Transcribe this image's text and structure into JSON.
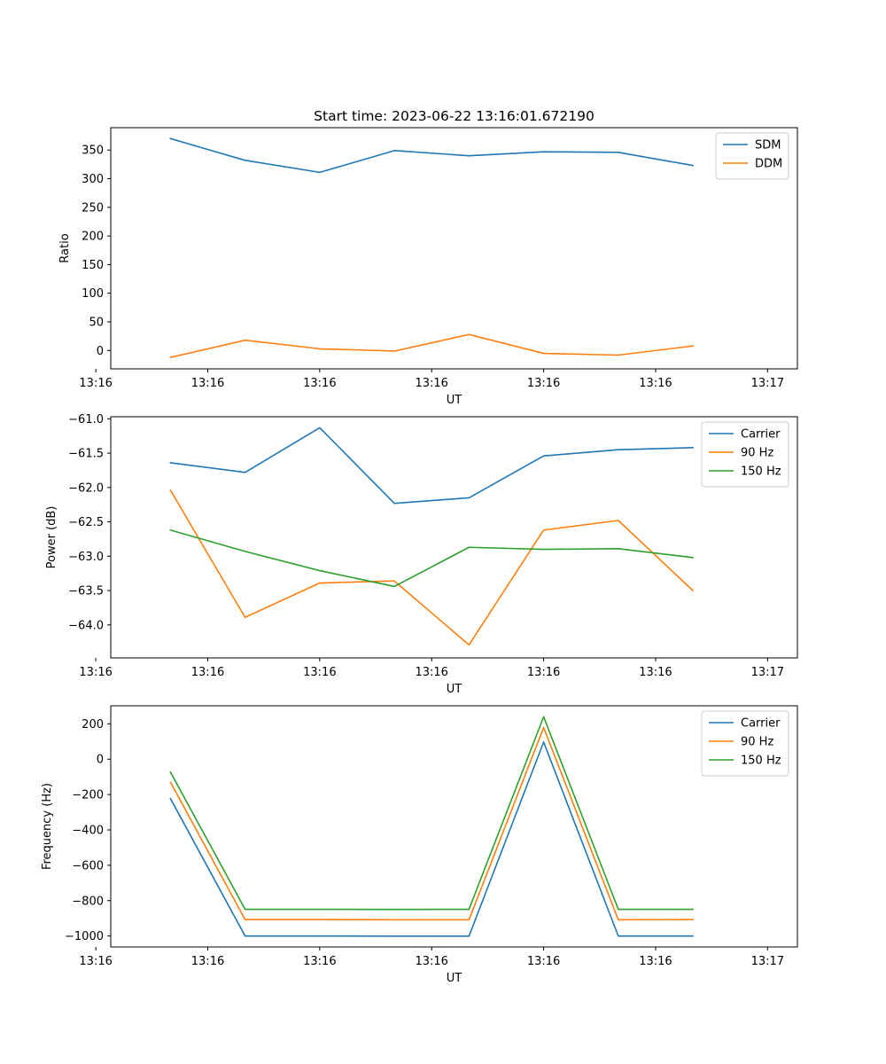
{
  "chart_data": [
    {
      "type": "line",
      "title": "Start time: 2023-06-22 13:16:01.672190",
      "xlabel": "UT",
      "ylabel": "Ratio",
      "x": [
        1,
        2,
        3,
        4,
        5,
        6,
        7,
        8
      ],
      "xlim": [
        0.2,
        9.4
      ],
      "x_ticks": [
        0,
        1.5,
        3,
        4.5,
        6,
        7.5,
        9
      ],
      "x_tick_labels": [
        "13:16",
        "13:16",
        "13:16",
        "13:16",
        "13:16",
        "13:16",
        "13:17"
      ],
      "ylim": [
        -32,
        389
      ],
      "y_ticks": [
        0,
        50,
        100,
        150,
        200,
        250,
        300,
        350
      ],
      "y_tick_labels": [
        "0",
        "50",
        "100",
        "150",
        "200",
        "250",
        "300",
        "350"
      ],
      "legend": "top-right",
      "grid": false,
      "series": [
        {
          "name": "SDM",
          "color": "#1f77b4",
          "values": [
            370,
            332,
            311,
            349,
            340,
            347,
            346,
            323
          ]
        },
        {
          "name": "DDM",
          "color": "#ff7f0e",
          "values": [
            -12,
            18,
            3,
            -1,
            28,
            -5,
            -8,
            8
          ]
        }
      ]
    },
    {
      "type": "line",
      "xlabel": "UT",
      "ylabel": "Power (dB)",
      "x": [
        1,
        2,
        3,
        4,
        5,
        6,
        7,
        8
      ],
      "xlim": [
        0.2,
        9.4
      ],
      "x_ticks": [
        0,
        1.5,
        3,
        4.5,
        6,
        7.5,
        9
      ],
      "x_tick_labels": [
        "13:16",
        "13:16",
        "13:16",
        "13:16",
        "13:16",
        "13:16",
        "13:17"
      ],
      "ylim": [
        -64.48,
        -60.97
      ],
      "y_ticks": [
        -64.0,
        -63.5,
        -63.0,
        -62.5,
        -62.0,
        -61.5,
        -61.0
      ],
      "y_tick_labels": [
        "−64.0",
        "−63.5",
        "−63.0",
        "−62.5",
        "−62.0",
        "−61.5",
        "−61.0"
      ],
      "legend": "top-right",
      "grid": false,
      "series": [
        {
          "name": "Carrier",
          "color": "#1f77b4",
          "values": [
            -61.64,
            -61.78,
            -61.13,
            -62.23,
            -62.15,
            -61.54,
            -61.45,
            -61.42
          ]
        },
        {
          "name": "90 Hz",
          "color": "#ff7f0e",
          "values": [
            -62.04,
            -63.89,
            -63.39,
            -63.36,
            -64.29,
            -62.62,
            -62.48,
            -63.5
          ]
        },
        {
          "name": "150 Hz",
          "color": "#2ca02c",
          "values": [
            -62.62,
            -62.93,
            -63.21,
            -63.44,
            -62.87,
            -62.9,
            -62.89,
            -63.02
          ]
        }
      ]
    },
    {
      "type": "line",
      "xlabel": "UT",
      "ylabel": "Frequency (Hz)",
      "x": [
        1,
        2,
        3,
        4,
        5,
        6,
        7,
        8
      ],
      "xlim": [
        0.2,
        9.4
      ],
      "x_ticks": [
        0,
        1.5,
        3,
        4.5,
        6,
        7.5,
        9
      ],
      "x_tick_labels": [
        "13:16",
        "13:16",
        "13:16",
        "13:16",
        "13:16",
        "13:16",
        "13:17"
      ],
      "ylim": [
        -1062,
        302
      ],
      "y_ticks": [
        -1000,
        -800,
        -600,
        -400,
        -200,
        0,
        200
      ],
      "y_tick_labels": [
        "−1000",
        "−800",
        "−600",
        "−400",
        "−200",
        "0",
        "200"
      ],
      "legend": "top-right",
      "grid": false,
      "series": [
        {
          "name": "Carrier",
          "color": "#1f77b4",
          "values": [
            -223,
            -1000,
            -1000,
            -1001,
            -1001,
            97,
            -1000,
            -1000
          ]
        },
        {
          "name": "90 Hz",
          "color": "#ff7f0e",
          "values": [
            -130,
            -907,
            -907,
            -908,
            -908,
            179,
            -908,
            -907
          ]
        },
        {
          "name": "150 Hz",
          "color": "#2ca02c",
          "values": [
            -73,
            -849,
            -849,
            -850,
            -849,
            240,
            -849,
            -849
          ]
        }
      ]
    }
  ]
}
